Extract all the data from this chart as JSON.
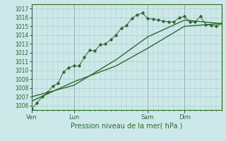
{
  "background_color": "#cce8e8",
  "grid_color": "#aacccc",
  "line_color": "#2d6a2d",
  "title": "Pression niveau de la mer( hPa )",
  "ylim": [
    1005.5,
    1017.5
  ],
  "yticks": [
    1006,
    1007,
    1008,
    1009,
    1010,
    1011,
    1012,
    1013,
    1014,
    1015,
    1016,
    1017
  ],
  "day_labels": [
    "Ven",
    "Lun",
    "Sam",
    "Dim"
  ],
  "day_positions": [
    0,
    8,
    22,
    29
  ],
  "xlim": [
    0,
    36
  ],
  "series1_x": [
    0,
    1,
    2,
    3,
    4,
    5,
    6,
    7,
    8,
    9,
    10,
    11,
    12,
    13,
    14,
    15,
    16,
    17,
    18,
    19,
    20,
    21,
    22,
    23,
    24,
    25,
    26,
    27,
    28,
    29,
    30,
    31,
    32,
    33,
    34,
    35,
    36
  ],
  "series1_y": [
    1005.6,
    1006.3,
    1007.0,
    1007.5,
    1008.2,
    1008.5,
    1009.8,
    1010.3,
    1010.5,
    1010.5,
    1011.5,
    1012.3,
    1012.2,
    1012.9,
    1013.0,
    1013.5,
    1014.0,
    1014.8,
    1015.1,
    1015.9,
    1016.3,
    1016.5,
    1015.9,
    1015.8,
    1015.7,
    1015.6,
    1015.5,
    1015.5,
    1016.0,
    1016.1,
    1015.5,
    1015.5,
    1016.1,
    1015.2,
    1015.1,
    1015.0,
    1015.3
  ],
  "series2_x": [
    0,
    8,
    16,
    22,
    29,
    36
  ],
  "series2_y": [
    1006.5,
    1008.7,
    1010.5,
    1012.5,
    1015.0,
    1015.3
  ],
  "series3_x": [
    0,
    8,
    16,
    22,
    29,
    36
  ],
  "series3_y": [
    1007.0,
    1008.3,
    1011.2,
    1013.8,
    1015.7,
    1015.3
  ],
  "vline_positions": [
    0,
    8,
    22,
    29
  ],
  "ylabel_fontsize": 5.5,
  "xlabel_fontsize": 7.0,
  "tick_label_fontsize": 6.0
}
